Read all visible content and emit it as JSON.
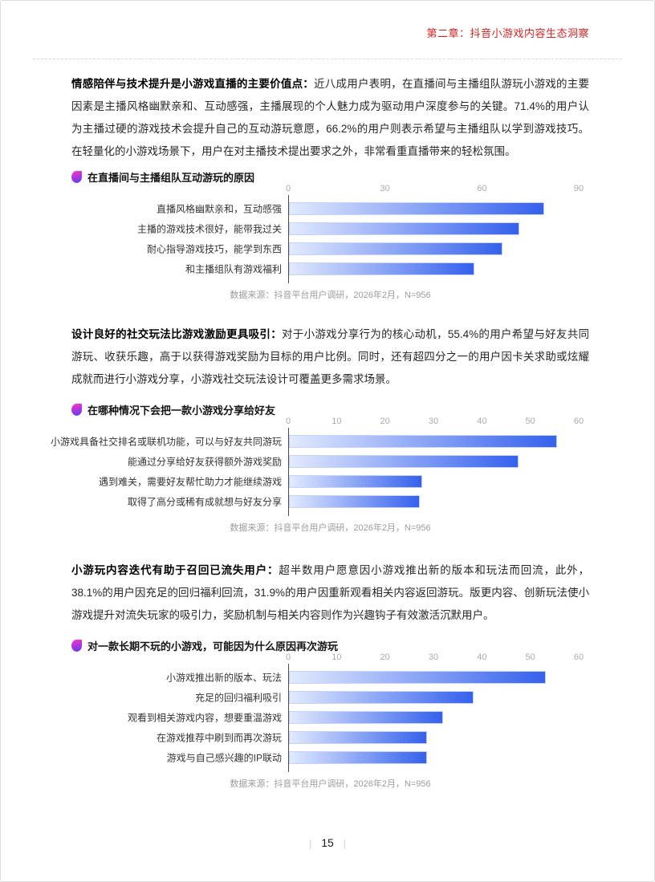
{
  "header": {
    "title": "第二章：抖音小游戏内容生态洞察"
  },
  "footer": {
    "page_number": "15",
    "pipe": "|"
  },
  "source_note": "数据来源：抖音平台用户调研，2026年2月，N=956",
  "colors": {
    "header_red": "#e02020",
    "bar_gradient_start": "#e2eafe",
    "bar_gradient_end": "#3561ed",
    "bar_border": "#c6d4fa",
    "axis_label_gray": "#ababab",
    "source_gray": "#9b9b9b",
    "icon_gradient_start": "#f136c9",
    "icon_gradient_end": "#5b41f0"
  },
  "paragraphs": [
    {
      "lead": "情感陪伴与技术提升是小游戏直播的主要价值点：",
      "body": "近八成用户表明，在直播间与主播组队游玩小游戏的主要因素是主播风格幽默亲和、互动感强，主播展现的个人魅力成为驱动用户深度参与的关键。71.4%的用户认为主播过硬的游戏技术会提升自己的互动游玩意愿，66.2%的用户则表示希望与主播组队以学到游戏技巧。在轻量化的小游戏场景下，用户在对主播技术提出要求之外，非常看重直播带来的轻松氛围。"
    },
    {
      "lead": "设计良好的社交玩法比游戏激励更具吸引：",
      "body": "对于小游戏分享行为的核心动机，55.4%的用户希望与好友共同游玩、收获乐趣，高于以获得游戏奖励为目标的用户比例。同时，还有超四分之一的用户因卡关求助或炫耀成就而进行小游戏分享，小游戏社交玩法设计可覆盖更多需求场景。"
    },
    {
      "lead": "小游玩内容迭代有助于召回已流失用户：",
      "body": "超半数用户愿意因小游戏推出新的版本和玩法而回流，此外，38.1%的用户因充足的回归福利回流，31.9%的用户因重新观看相关内容返回游玩。版更内容、创新玩法使小游戏提升对流失玩家的吸引力，奖励机制与相关内容则作为兴趣钩子有效激活沉默用户。"
    }
  ],
  "chart_data": [
    {
      "type": "bar",
      "orientation": "horizontal",
      "title": "在直播间与主播组队互动游玩的原因",
      "categories": [
        "直播风格幽默亲和，互动感强",
        "主播的游戏技术很好，能带我过关",
        "耐心指导游戏技巧，能学到东西",
        "和主播组队有游戏福利"
      ],
      "values": [
        79.0,
        71.4,
        66.2,
        57.5
      ],
      "xlim": [
        0,
        90
      ],
      "x_ticks": [
        0,
        30,
        60,
        90
      ],
      "grid": false,
      "legend": false,
      "source": "数据来源：抖音平台用户调研，2026年2月，N=956"
    },
    {
      "type": "bar",
      "orientation": "horizontal",
      "title": "在哪种情况下会把一款小游戏分享给好友",
      "categories": [
        "小游戏具备社交排名或联机功能，可以与好友共同游玩",
        "能通过分享给好友获得额外游戏奖励",
        "遇到难关，需要好友帮忙助力才能继续游戏",
        "取得了高分或稀有成就想与好友分享"
      ],
      "values": [
        55.4,
        47.4,
        27.5,
        27.0
      ],
      "xlim": [
        0,
        60
      ],
      "x_ticks": [
        0,
        10,
        20,
        30,
        40,
        50,
        60
      ],
      "grid": false,
      "legend": false,
      "source": "数据来源：抖音平台用户调研，2026年2月，N=956"
    },
    {
      "type": "bar",
      "orientation": "horizontal",
      "title": "对一款长期不玩的小游戏，可能因为什么原因再次游玩",
      "categories": [
        "小游戏推出新的版本、玩法",
        "充足的回归福利吸引",
        "观看到相关游戏内容，想要重温游戏",
        "在游戏推荐中刷到而再次游玩",
        "游戏与自己感兴趣的IP联动"
      ],
      "values": [
        53.0,
        38.1,
        31.9,
        28.5,
        28.5
      ],
      "xlim": [
        0,
        60
      ],
      "x_ticks": [
        0,
        10,
        20,
        30,
        40,
        50,
        60
      ],
      "grid": false,
      "legend": false,
      "source": "数据来源：抖音平台用户调研，2026年2月，N=956"
    }
  ]
}
